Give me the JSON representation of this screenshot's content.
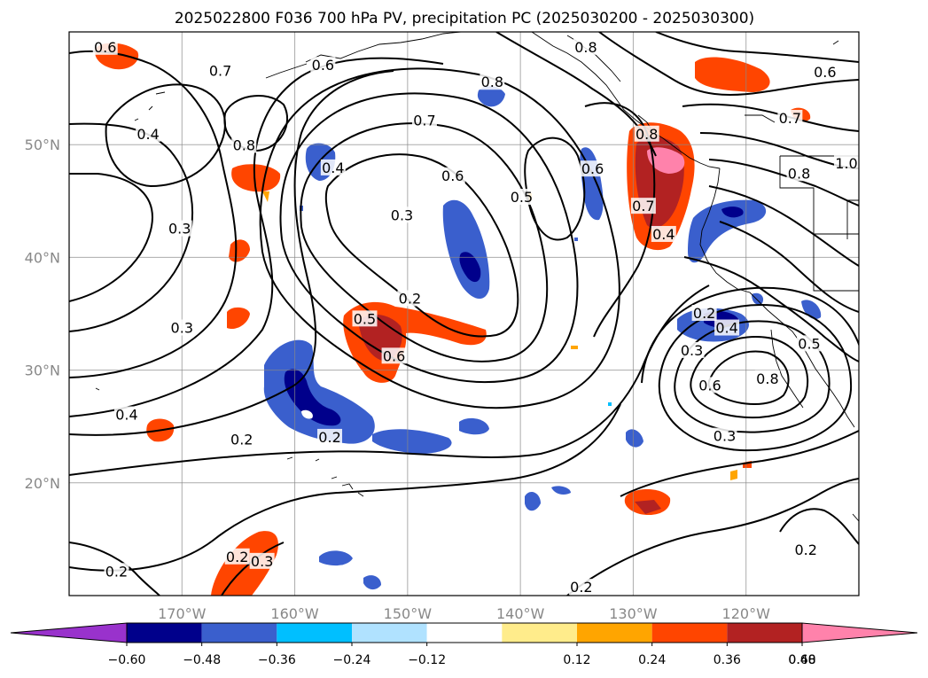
{
  "title": "2025022800 F036 700 hPa PV, precipitation PC (2025030200 - 2025030300)",
  "map": {
    "lon_range": [
      -180,
      -110
    ],
    "lat_range": [
      10,
      60
    ],
    "lon_gridlines": [
      -170,
      -160,
      -150,
      -140,
      -130,
      -120
    ],
    "lat_gridlines": [
      20,
      30,
      40,
      50
    ],
    "lon_labels": [
      "170°W",
      "160°W",
      "150°W",
      "140°W",
      "130°W",
      "120°W"
    ],
    "lat_labels": [
      "20°N",
      "30°N",
      "40°N",
      "50°N"
    ]
  },
  "colorbar": {
    "tick_labels": [
      "−0.60",
      "−0.48",
      "−0.36",
      "−0.24",
      "−0.12",
      "0.12",
      "0.24",
      "0.36",
      "0.48",
      "0.60"
    ],
    "colors": [
      "#9932cc",
      "#00008b",
      "#3a5fcd",
      "#00bfff",
      "#b0e2ff",
      "#ffffff",
      "#ffec8b",
      "#ffa500",
      "#ff4500",
      "#b22222",
      "#ff82ab"
    ]
  },
  "contour_labels": [
    {
      "text": "0.6",
      "lon": -176.8,
      "lat": 58.6
    },
    {
      "text": "0.7",
      "lon": -166.6,
      "lat": 56.5
    },
    {
      "text": "0.6",
      "lon": -157.5,
      "lat": 57.0
    },
    {
      "text": "0.8",
      "lon": -142.5,
      "lat": 55.5
    },
    {
      "text": "0.8",
      "lon": -134.2,
      "lat": 58.6
    },
    {
      "text": "0.6",
      "lon": -113.0,
      "lat": 56.4
    },
    {
      "text": "0.7",
      "lon": -116.1,
      "lat": 52.3
    },
    {
      "text": "0.4",
      "lon": -173.0,
      "lat": 50.9
    },
    {
      "text": "0.8",
      "lon": -164.5,
      "lat": 49.9
    },
    {
      "text": "0.7",
      "lon": -148.5,
      "lat": 52.1
    },
    {
      "text": "0.6",
      "lon": -146.0,
      "lat": 47.2
    },
    {
      "text": "0.4",
      "lon": -156.6,
      "lat": 47.9
    },
    {
      "text": "0.5",
      "lon": -139.9,
      "lat": 45.3
    },
    {
      "text": "0.6",
      "lon": -133.6,
      "lat": 47.8
    },
    {
      "text": "0.8",
      "lon": -128.8,
      "lat": 50.9
    },
    {
      "text": "0.7",
      "lon": -129.1,
      "lat": 44.5
    },
    {
      "text": "0.4",
      "lon": -127.3,
      "lat": 42.0
    },
    {
      "text": "1.0",
      "lon": -111.1,
      "lat": 48.3
    },
    {
      "text": "0.8",
      "lon": -115.3,
      "lat": 47.4
    },
    {
      "text": "0.3",
      "lon": -170.2,
      "lat": 42.5
    },
    {
      "text": "0.3",
      "lon": -150.5,
      "lat": 43.7
    },
    {
      "text": "0.2",
      "lon": -149.8,
      "lat": 36.3
    },
    {
      "text": "0.5",
      "lon": -153.8,
      "lat": 34.5
    },
    {
      "text": "0.6",
      "lon": -151.2,
      "lat": 31.2
    },
    {
      "text": "0.3",
      "lon": -170.0,
      "lat": 33.7
    },
    {
      "text": "0.2",
      "lon": -123.7,
      "lat": 35.0
    },
    {
      "text": "0.3",
      "lon": -124.8,
      "lat": 31.7
    },
    {
      "text": "0.4",
      "lon": -121.7,
      "lat": 33.7
    },
    {
      "text": "0.5",
      "lon": -114.4,
      "lat": 32.3
    },
    {
      "text": "0.6",
      "lon": -123.2,
      "lat": 28.6
    },
    {
      "text": "0.8",
      "lon": -118.1,
      "lat": 29.2
    },
    {
      "text": "0.4",
      "lon": -174.9,
      "lat": 26.0
    },
    {
      "text": "0.2",
      "lon": -164.7,
      "lat": 23.8
    },
    {
      "text": "0.2",
      "lon": -156.9,
      "lat": 24.0
    },
    {
      "text": "0.3",
      "lon": -121.9,
      "lat": 24.1
    },
    {
      "text": "0.2",
      "lon": -114.7,
      "lat": 14.0
    },
    {
      "text": "0.2",
      "lon": -165.1,
      "lat": 13.4
    },
    {
      "text": "0.3",
      "lon": -162.9,
      "lat": 13.0
    },
    {
      "text": "0.2",
      "lon": -175.8,
      "lat": 12.1
    },
    {
      "text": "0.2",
      "lon": -134.6,
      "lat": 10.7
    }
  ]
}
